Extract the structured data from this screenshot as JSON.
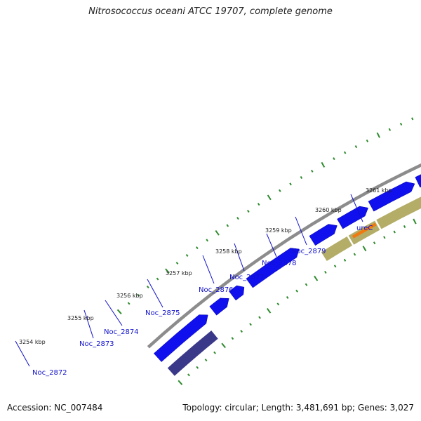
{
  "title": "Nitrosococcus oceani ATCC 19707, complete genome",
  "footer": {
    "accession": "Accession: NC_007484",
    "summary": "Topology: circular; Length: 3,481,691 bp; Genes: 3,027"
  },
  "colors": {
    "backbone": "#8c8c8c",
    "forward_gene": "#1010ee",
    "reverse_gene_dark": "#3a3888",
    "reverse_gene_khaki": "#b4ad68",
    "reverse_gene_orange": "#ee7a10",
    "reverse_gene_steel": "#4f88c0",
    "tick": "#2e8b2e",
    "label": "#1010cc"
  },
  "scale": {
    "unit": "kbp",
    "labels": [
      "3254 kbp",
      "3255 kbp",
      "3256 kbp",
      "3257 kbp",
      "3258 kbp",
      "3259 kbp",
      "3260 kbp",
      "3261 kbp"
    ]
  },
  "genes": [
    {
      "label": "Noc_2872"
    },
    {
      "label": "Noc_2873"
    },
    {
      "label": "Noc_2874"
    },
    {
      "label": "Noc_2875"
    },
    {
      "label": "Noc_2876"
    },
    {
      "label": "Noc_2877"
    },
    {
      "label": "Noc_2878"
    },
    {
      "label": "Noc_2879"
    },
    {
      "label": "ureC"
    }
  ]
}
